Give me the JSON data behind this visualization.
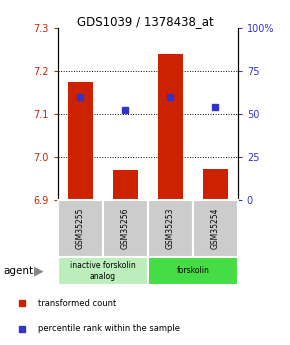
{
  "title": "GDS1039 / 1378438_at",
  "samples": [
    "GSM35255",
    "GSM35256",
    "GSM35253",
    "GSM35254"
  ],
  "red_values": [
    7.175,
    6.97,
    7.238,
    6.972
  ],
  "blue_percentiles": [
    60,
    52,
    60,
    54
  ],
  "ylim": [
    6.9,
    7.3
  ],
  "yticks": [
    6.9,
    7.0,
    7.1,
    7.2,
    7.3
  ],
  "right_yticks": [
    0,
    25,
    50,
    75,
    100
  ],
  "right_ylabels": [
    "0",
    "25",
    "50",
    "75",
    "100%"
  ],
  "grid_values": [
    7.0,
    7.1,
    7.2
  ],
  "bar_color": "#cc2200",
  "blue_color": "#3333cc",
  "bar_width": 0.55,
  "groups": [
    {
      "label": "inactive forskolin\nanalog",
      "indices": [
        0,
        1
      ],
      "color": "#bbeebb"
    },
    {
      "label": "forskolin",
      "indices": [
        2,
        3
      ],
      "color": "#44dd44"
    }
  ],
  "legend_red": "transformed count",
  "legend_blue": "percentile rank within the sample",
  "tick_color_left": "#cc2200",
  "tick_color_right": "#3333cc",
  "sample_box_color": "#cccccc",
  "agent_label": "agent"
}
